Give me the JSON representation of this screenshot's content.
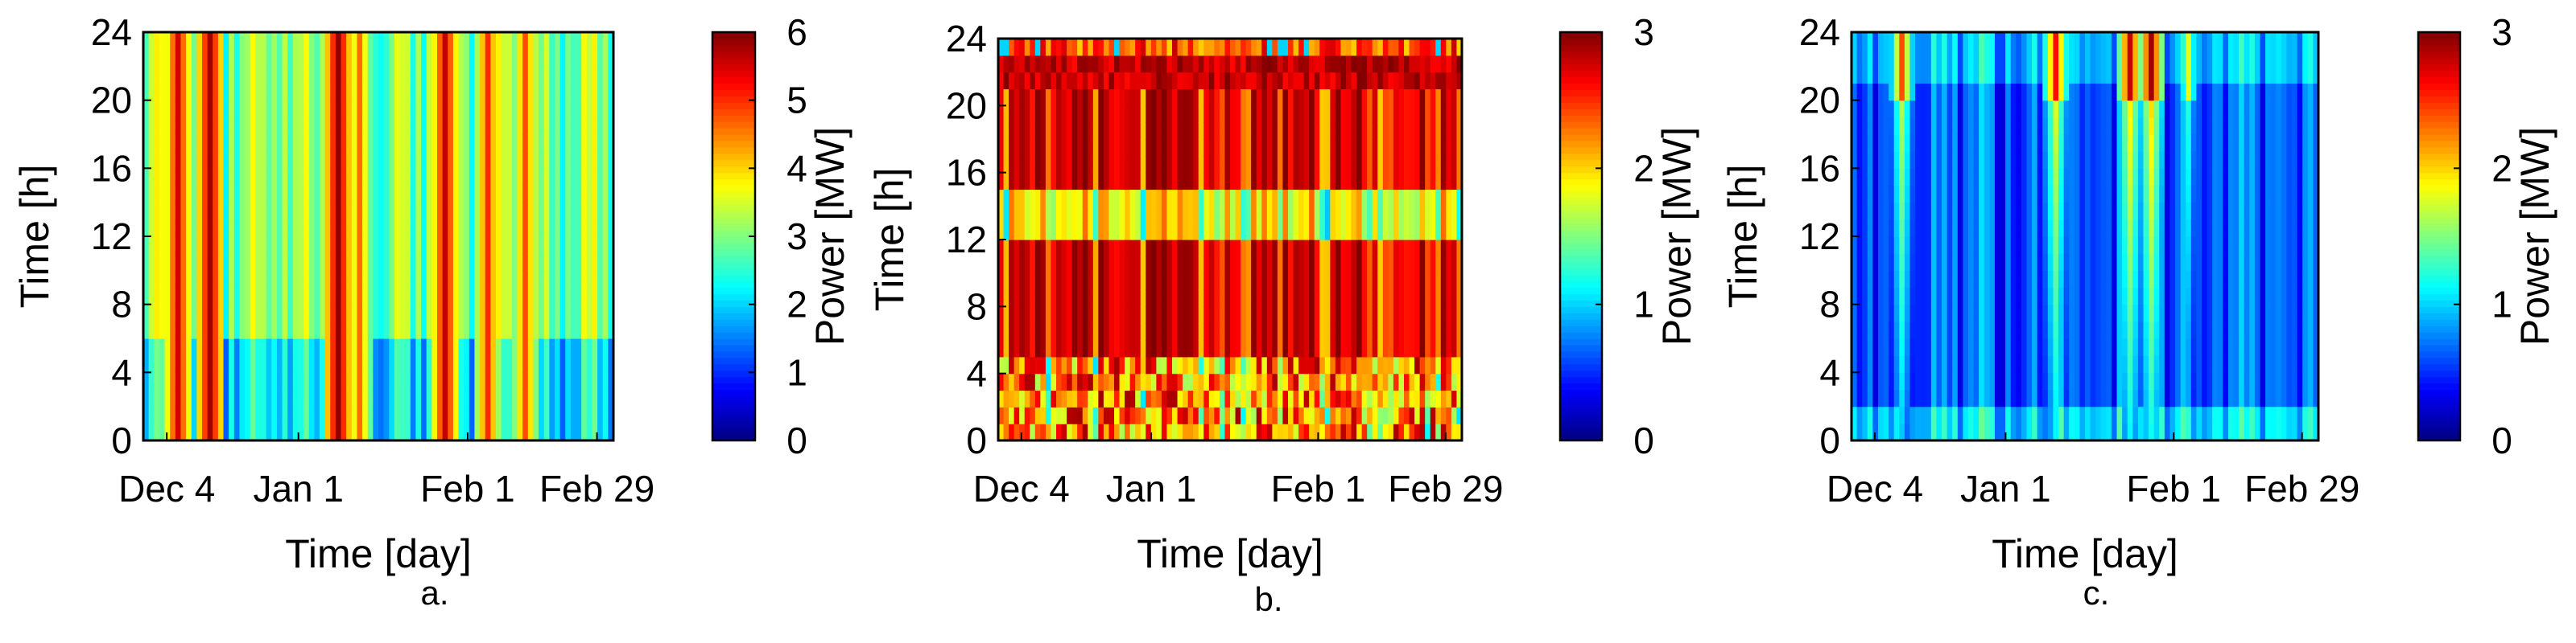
{
  "chart_data": [
    {
      "type": "heatmap",
      "caption": "a.",
      "xlabel": "Time [day]",
      "ylabel": "Time [h]",
      "x_ticks": [
        "Dec 4",
        "Jan 1",
        "Feb 1",
        "Feb 29"
      ],
      "y_ticks": [
        "0",
        "4",
        "8",
        "12",
        "16",
        "20",
        "24"
      ],
      "ylim": [
        0,
        24
      ],
      "colorbar": {
        "label": "Power [MW]",
        "range": [
          0,
          6
        ],
        "ticks": [
          "0",
          "1",
          "2",
          "3",
          "4",
          "5",
          "6"
        ],
        "colormap": "jet"
      },
      "peak_days": [
        {
          "day": 6,
          "value": 5.5
        },
        {
          "day": 12,
          "value": 5.8
        },
        {
          "day": 36,
          "value": 5.9
        },
        {
          "day": 40,
          "value": 4.6
        },
        {
          "day": 56,
          "value": 5.6
        },
        {
          "day": 64,
          "value": 5.0
        },
        {
          "day": 71,
          "value": 4.8
        }
      ],
      "base_value": 3.0
    },
    {
      "type": "heatmap",
      "caption": "b.",
      "xlabel": "Time [day]",
      "ylabel": "Time [h]",
      "x_ticks": [
        "Dec 4",
        "Jan 1",
        "Feb 1",
        "Feb 29"
      ],
      "y_ticks": [
        "0",
        "4",
        "8",
        "12",
        "16",
        "20",
        "24"
      ],
      "ylim": [
        0,
        24
      ],
      "colorbar": {
        "label": "Power [MW]",
        "range": [
          0,
          3
        ],
        "ticks": [
          "0",
          "1",
          "2",
          "3"
        ],
        "colormap": "jet"
      },
      "peak_days": [],
      "base_value": 2.7
    },
    {
      "type": "heatmap",
      "caption": "c.",
      "xlabel": "Time [day]",
      "ylabel": "Time [h]",
      "x_ticks": [
        "Dec 4",
        "Jan 1",
        "Feb 1",
        "Feb 29"
      ],
      "y_ticks": [
        "0",
        "4",
        "8",
        "12",
        "16",
        "20",
        "24"
      ],
      "ylim": [
        0,
        24
      ],
      "colorbar": {
        "label": "Power [MW]",
        "range": [
          0,
          3
        ],
        "ticks": [
          "0",
          "1",
          "2",
          "3"
        ],
        "colormap": "jet"
      },
      "peak_days": [
        {
          "day": 9,
          "value": 2.4
        },
        {
          "day": 38,
          "value": 2.6
        },
        {
          "day": 52,
          "value": 2.8
        },
        {
          "day": 56,
          "value": 2.9
        },
        {
          "day": 63,
          "value": 1.8
        }
      ],
      "base_value": 0.5
    }
  ]
}
